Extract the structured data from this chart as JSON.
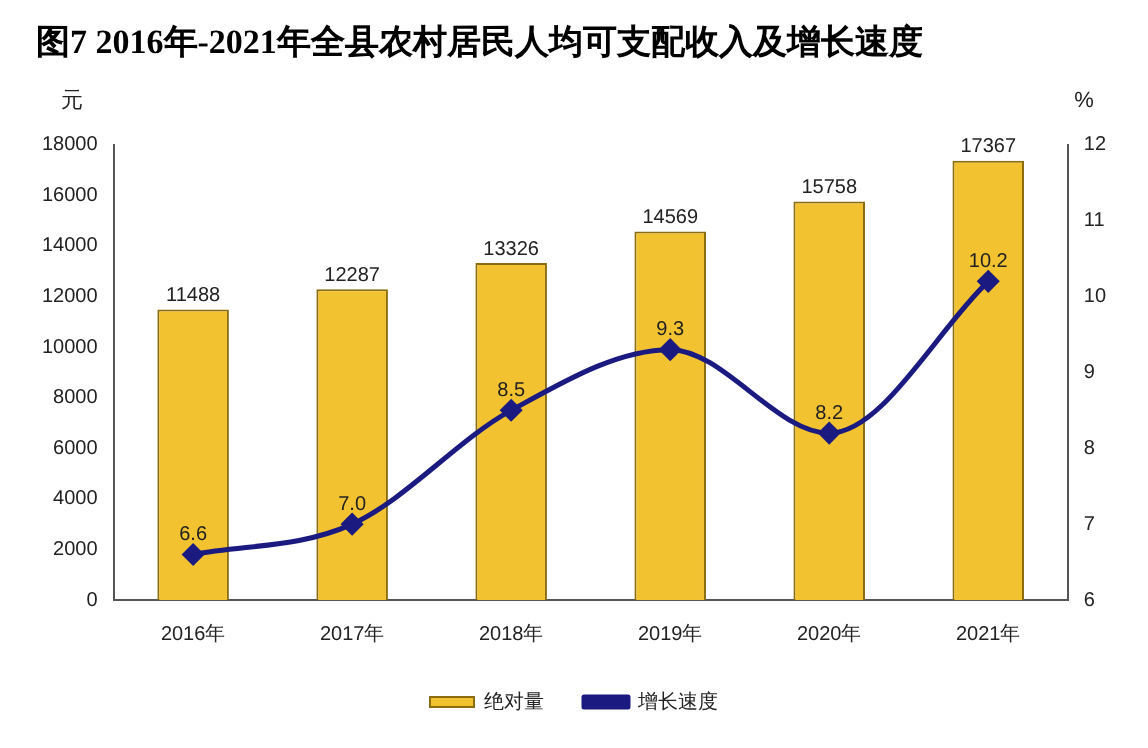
{
  "chart_data": {
    "type": "bar",
    "title": "图7 2016年-2021年全县农村居民人均可支配收入及增长速度",
    "ylabel": "元",
    "y2label": "%",
    "categories": [
      "2016年",
      "2017年",
      "2018年",
      "2019年",
      "2020年",
      "2021年"
    ],
    "series": [
      {
        "name": "绝对量",
        "color": "#f2c230",
        "values": [
          11488,
          12287,
          13326,
          14569,
          15758,
          17367
        ]
      },
      {
        "name": "增长速度",
        "type": "line",
        "axis": "y2",
        "color": "#1a1a80",
        "marker": "diamond",
        "values": [
          6.6,
          7.0,
          8.5,
          9.3,
          8.2,
          10.2
        ],
        "value_labels": [
          "6.6",
          "7.0",
          "8.5",
          "9.3",
          "8.2",
          "10.2"
        ]
      }
    ],
    "ylim": [
      0,
      18000
    ],
    "yticks": [
      0,
      2000,
      4000,
      6000,
      8000,
      10000,
      12000,
      14000,
      16000,
      18000
    ],
    "y2lim": [
      6,
      12
    ],
    "y2ticks": [
      6,
      7,
      8,
      9,
      10,
      11,
      12
    ],
    "data_labels": true,
    "grid": false,
    "legend": "bottom"
  }
}
